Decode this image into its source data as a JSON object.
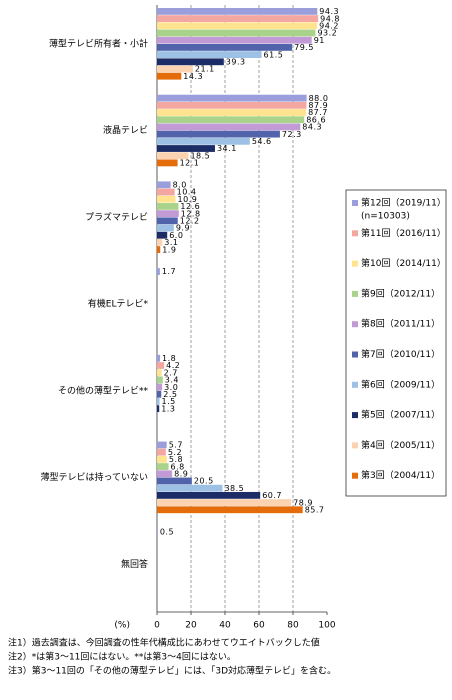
{
  "chart_data": {
    "type": "bar",
    "orientation": "horizontal",
    "categories": [
      "薄型テレビ所有者・小計",
      "液晶テレビ",
      "プラズマテレビ",
      "有機ELテレビ*",
      "その他の薄型テレビ**",
      "薄型テレビは持っていない",
      "無回答"
    ],
    "series": [
      {
        "name": "第12回（2019/11）",
        "n_label": "(n=10303)",
        "color": "#9a9fdc",
        "values": [
          94.3,
          88.0,
          8.0,
          1.7,
          1.8,
          5.7,
          0.5
        ],
        "value_labels": [
          "94.3",
          "88.0",
          "8.0",
          "1.7",
          "1.8",
          "5.7",
          "0.5"
        ]
      },
      {
        "name": "第11回（2016/11）",
        "color": "#f4a7a0",
        "values": [
          94.8,
          87.9,
          10.4,
          null,
          4.2,
          5.2,
          null
        ],
        "value_labels": [
          "94.8",
          "87.9",
          "10.4",
          null,
          "4.2",
          "5.2",
          null
        ]
      },
      {
        "name": "第10回（2014/11）",
        "color": "#ffe38f",
        "values": [
          94.2,
          87.7,
          10.9,
          null,
          2.7,
          5.8,
          null
        ],
        "value_labels": [
          "94.2",
          "87.7",
          "10.9",
          null,
          "2.7",
          "5.8",
          null
        ]
      },
      {
        "name": "第9回（2012/11）",
        "color": "#a9d38a",
        "values": [
          93.2,
          86.6,
          12.6,
          null,
          3.4,
          6.8,
          null
        ],
        "value_labels": [
          "93.2",
          "86.6",
          "12.6",
          null,
          "3.4",
          "6.8",
          null
        ]
      },
      {
        "name": "第8回（2011/11）",
        "color": "#c29ad6",
        "values": [
          91,
          84.3,
          12.8,
          null,
          3.0,
          8.9,
          null
        ],
        "value_labels": [
          "91",
          "84.3",
          "12.8",
          null,
          "3.0",
          "8.9",
          null
        ]
      },
      {
        "name": "第7回（2010/11）",
        "color": "#5163aa",
        "values": [
          79.5,
          72.3,
          12.2,
          null,
          2.5,
          20.5,
          null
        ],
        "value_labels": [
          "79.5",
          "72.3",
          "12.2",
          null,
          "2.5",
          "20.5",
          null
        ]
      },
      {
        "name": "第6回（2009/11）",
        "color": "#9cc1e4",
        "values": [
          61.5,
          54.6,
          9.9,
          null,
          1.5,
          38.5,
          null
        ],
        "value_labels": [
          "61.5",
          "54.6",
          "9.9",
          null,
          "1.5",
          "38.5",
          null
        ]
      },
      {
        "name": "第5回（2007/11）",
        "color": "#1c2c66",
        "values": [
          39.3,
          34.1,
          6.0,
          null,
          1.3,
          60.7,
          null
        ],
        "value_labels": [
          "39.3",
          "34.1",
          "6.0",
          null,
          "1.3",
          "60.7",
          null
        ]
      },
      {
        "name": "第4回（2005/11）",
        "color": "#fbd3b0",
        "values": [
          21.1,
          18.5,
          3.1,
          null,
          null,
          78.9,
          null
        ],
        "value_labels": [
          "21.1",
          "18.5",
          "3.1",
          null,
          null,
          "78.9",
          null
        ]
      },
      {
        "name": "第3回（2004/11）",
        "color": "#e46c0a",
        "values": [
          14.3,
          12.1,
          1.9,
          null,
          null,
          85.7,
          null
        ],
        "value_labels": [
          "14.3",
          "12.1",
          "1.9",
          null,
          null,
          "85.7",
          null
        ]
      }
    ],
    "xlim": [
      0,
      100
    ],
    "xticks": [
      0,
      20,
      40,
      60,
      80,
      100
    ],
    "xlabel": "(%)",
    "grid": true,
    "notes": [
      "注1）過去調査は、今回調査の性年代構成比にあわせてウエイトバックした値",
      "注2）*は第3～11回にはない。**は第3～4回にはない。",
      "注3）第3～11回の「その他の薄型テレビ」には、「3D対応薄型テレビ」を含む。"
    ]
  }
}
